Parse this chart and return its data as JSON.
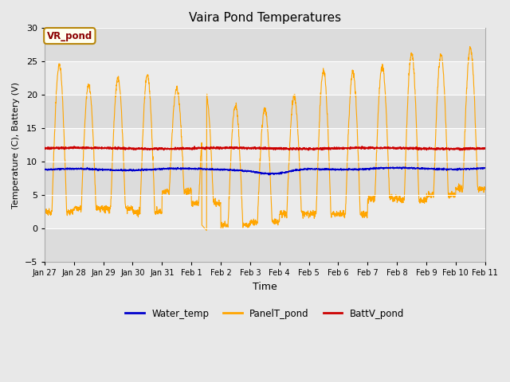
{
  "title": "Vaira Pond Temperatures",
  "xlabel": "Time",
  "ylabel": "Temperature (C), Battery (V)",
  "ylim": [
    -5,
    30
  ],
  "n_days": 15,
  "annotation_text": "VR_pond",
  "annotation_color": "#8B0000",
  "annotation_bg": "#FFFFF0",
  "annotation_border": "#B8860B",
  "water_color": "#0000CC",
  "panel_color": "#FFA500",
  "batt_color": "#CC0000",
  "fig_bg": "#E8E8E8",
  "plot_bg_light": "#EBEBEB",
  "plot_bg_dark": "#DCDCDC",
  "tick_labels": [
    "Jan 27",
    "Jan 28",
    "Jan 29",
    "Jan 30",
    "Jan 31",
    "Feb 1",
    "Feb 2",
    "Feb 3",
    "Feb 4",
    "Feb 5",
    "Feb 6",
    "Feb 7",
    "Feb 8",
    "Feb 9",
    "Feb 10",
    "Feb 11"
  ],
  "water_base": 8.8,
  "batt_base": 12.0,
  "day_peaks": [
    24.5,
    21.5,
    22.5,
    23.0,
    21.0,
    20.0,
    18.5,
    18.0,
    19.7,
    23.7,
    23.5,
    24.2,
    26.2,
    26.0,
    27.0
  ],
  "day_nights": [
    2.5,
    3.0,
    3.0,
    2.5,
    5.5,
    3.8,
    0.5,
    1.0,
    2.2,
    2.2,
    2.2,
    4.5,
    4.2,
    5.0,
    6.0
  ],
  "yticks": [
    -5,
    0,
    5,
    10,
    15,
    20,
    25,
    30
  ]
}
